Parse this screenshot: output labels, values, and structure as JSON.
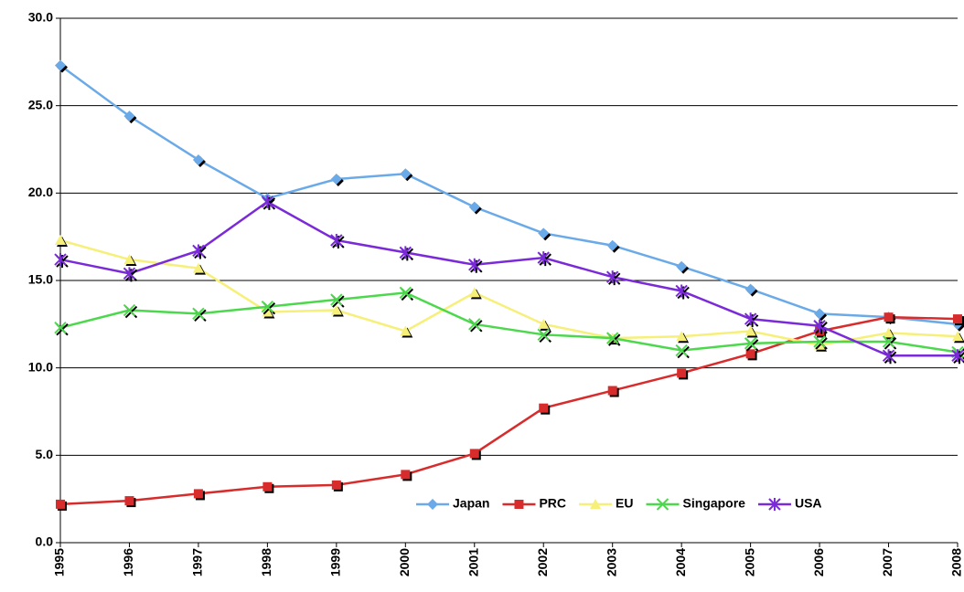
{
  "chart_data": {
    "type": "line",
    "categories": [
      "1995",
      "1996",
      "1997",
      "1998",
      "1999",
      "2000",
      "2001",
      "2002",
      "2003",
      "2004",
      "2005",
      "2006",
      "2007",
      "2008"
    ],
    "series": [
      {
        "name": "Japan",
        "color": "#6aaae8",
        "marker": "diamond",
        "values": [
          27.3,
          24.4,
          21.9,
          19.7,
          20.8,
          21.1,
          19.2,
          17.7,
          17.0,
          15.8,
          14.5,
          13.1,
          12.9,
          12.5
        ]
      },
      {
        "name": "PRC",
        "color": "#d82c2c",
        "marker": "square",
        "values": [
          2.2,
          2.4,
          2.8,
          3.2,
          3.3,
          3.9,
          5.1,
          7.7,
          8.7,
          9.7,
          10.8,
          12.1,
          12.9,
          12.8
        ]
      },
      {
        "name": "EU",
        "color": "#f6f07a",
        "marker": "triangle",
        "values": [
          17.3,
          16.2,
          15.7,
          13.2,
          13.3,
          12.1,
          14.3,
          12.5,
          11.7,
          11.8,
          12.1,
          11.3,
          12.0,
          11.8
        ]
      },
      {
        "name": "Singapore",
        "color": "#4cd84c",
        "marker": "x",
        "values": [
          12.3,
          13.3,
          13.1,
          13.5,
          13.9,
          14.3,
          12.5,
          11.9,
          11.7,
          11.0,
          11.4,
          11.5,
          11.5,
          10.9
        ]
      },
      {
        "name": "USA",
        "color": "#7a2ad8",
        "marker": "star",
        "values": [
          16.2,
          15.4,
          16.7,
          19.5,
          17.3,
          16.6,
          15.9,
          16.3,
          15.2,
          14.4,
          12.8,
          12.4,
          10.7,
          10.7
        ]
      }
    ],
    "ylim": [
      0,
      30
    ],
    "yticks": [
      {
        "value": 0,
        "label": "0.0"
      },
      {
        "value": 5,
        "label": "5.0"
      },
      {
        "value": 10,
        "label": "10.0"
      },
      {
        "value": 15,
        "label": "15.0"
      },
      {
        "value": 20,
        "label": "20.0"
      },
      {
        "value": 25,
        "label": "25.0"
      },
      {
        "value": 30,
        "label": "30.0"
      }
    ],
    "grid": true,
    "legend": "bottom"
  }
}
